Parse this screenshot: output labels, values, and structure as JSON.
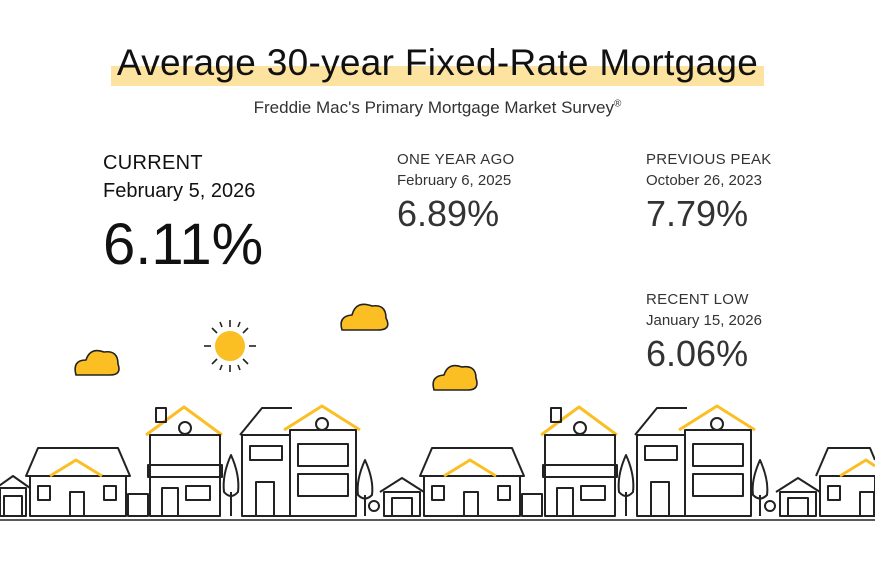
{
  "title": "Average 30-year Fixed-Rate Mortgage",
  "subtitle": "Freddie Mac's Primary Mortgage Market Survey",
  "subtitle_mark": "®",
  "current": {
    "label": "CURRENT",
    "date": "February 5, 2026",
    "value": "6.11%"
  },
  "one_year_ago": {
    "label": "ONE YEAR AGO",
    "date": "February 6, 2025",
    "value": "6.89%"
  },
  "previous_peak": {
    "label": "PREVIOUS PEAK",
    "date": "October 26, 2023",
    "value": "7.79%"
  },
  "recent_low": {
    "label": "RECENT LOW",
    "date": "January 15, 2026",
    "value": "6.06%"
  },
  "colors": {
    "accent": "#fbbf24",
    "highlight": "#fde3a0",
    "line": "#222222"
  },
  "illustration": {
    "icons": [
      "sun-icon",
      "cloud-icon",
      "house-icon",
      "tree-icon",
      "garage-icon"
    ]
  }
}
